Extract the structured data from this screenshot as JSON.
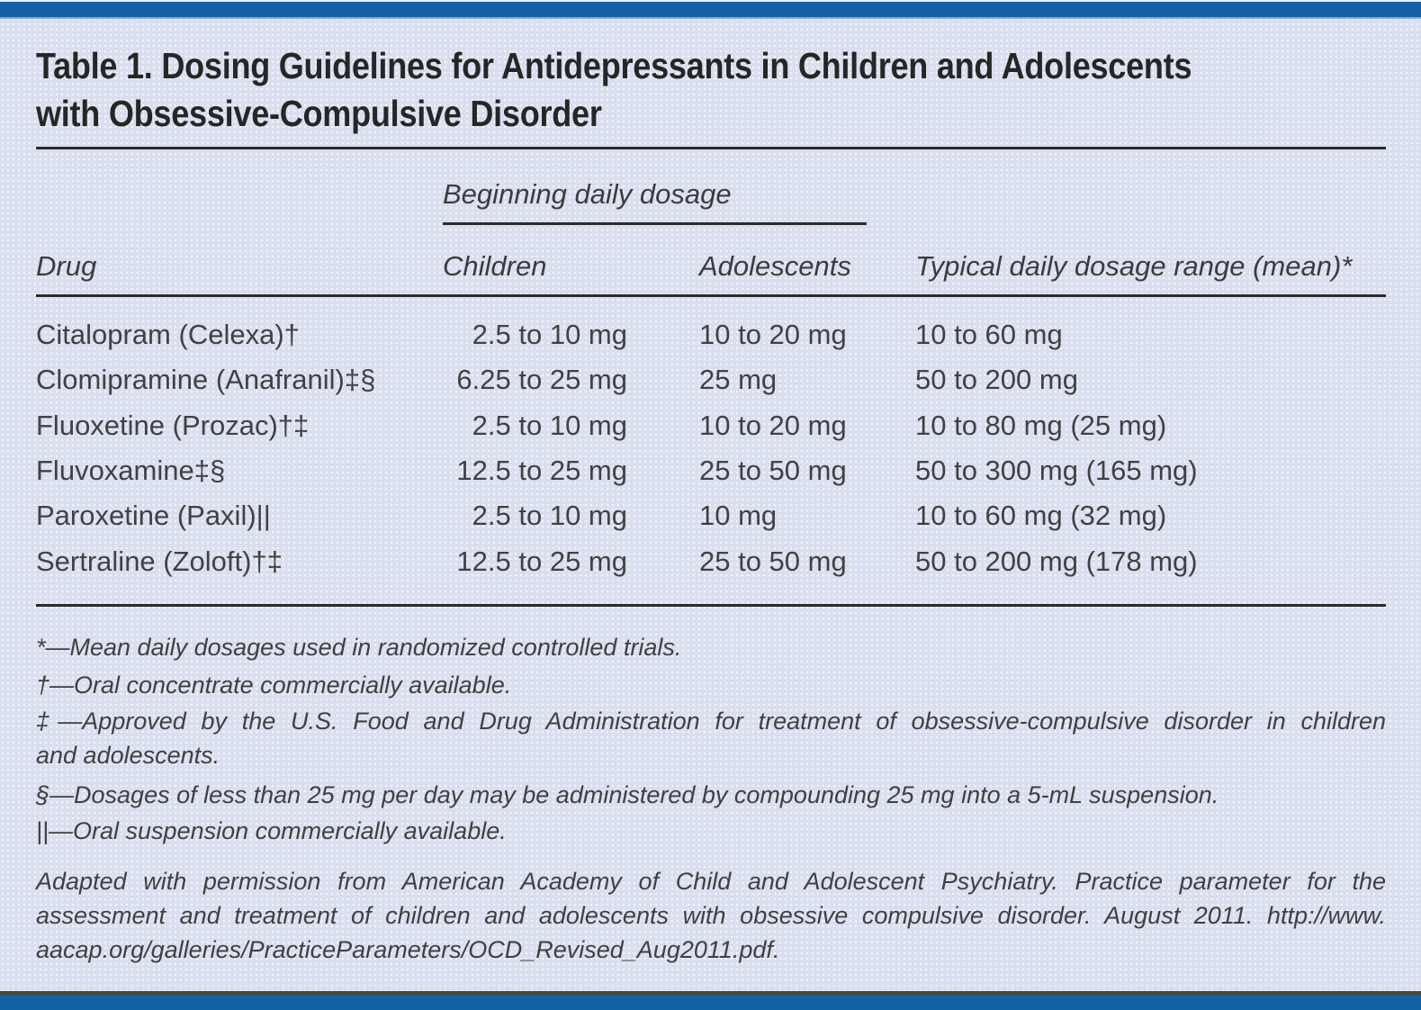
{
  "title_lines": [
    "Table 1. Dosing Guidelines for Antidepressants in Children and Adolescents",
    "with Obsessive-Compulsive Disorder"
  ],
  "table": {
    "group_header": "Beginning daily dosage",
    "columns": {
      "drug": "Drug",
      "children": "Children",
      "adolescents": "Adolescents",
      "typical": "Typical daily dosage range (mean)*"
    },
    "rows": [
      {
        "drug": "Citalopram (Celexa)†",
        "children": "2.5 to 10 mg",
        "adolescents": "10 to 20 mg",
        "typical": "10 to 60 mg"
      },
      {
        "drug": "Clomipramine (Anafranil)‡§",
        "children": "6.25 to 25 mg",
        "adolescents": "25 mg",
        "typical": "50 to 200 mg"
      },
      {
        "drug": "Fluoxetine (Prozac)†‡",
        "children": "2.5 to 10 mg",
        "adolescents": "10 to 20 mg",
        "typical": "10 to 80 mg (25 mg)"
      },
      {
        "drug": "Fluvoxamine‡§",
        "children": "12.5 to 25 mg",
        "adolescents": "25 to 50 mg",
        "typical": "50 to 300 mg (165 mg)"
      },
      {
        "drug": "Paroxetine (Paxil)||",
        "children": "2.5 to 10 mg",
        "adolescents": "10 mg",
        "typical": "10 to 60 mg (32 mg)"
      },
      {
        "drug": "Sertraline (Zoloft)†‡",
        "children": "12.5 to 25 mg",
        "adolescents": "25 to 50 mg",
        "typical": "50 to 200 mg (178 mg)"
      }
    ]
  },
  "footnotes": [
    {
      "lines": [
        "*—Mean daily dosages used in randomized controlled trials."
      ]
    },
    {
      "lines": [
        "†—Oral concentrate commercially available."
      ]
    },
    {
      "lines": [
        "‡—Approved by the U.S. Food and Drug Administration for treatment of obsessive-compulsive disorder in children",
        "and adolescents."
      ]
    },
    {
      "lines": [
        "§—Dosages of less than 25 mg per day may be administered by compounding 25 mg into a 5-mL suspension."
      ]
    },
    {
      "lines": [
        "||—Oral suspension commercially available."
      ]
    }
  ],
  "attribution_lines": [
    "Adapted with permission from American Academy of Child and Adolescent Psychiatry. Practice parameter for the",
    "assessment and treatment of children and adolescents with obsessive compulsive disorder. August 2011. http://www.",
    "aacap.org/galleries/PracticeParameters/OCD_Revised_Aug2011.pdf."
  ],
  "colors": {
    "bar_blue": "#1561a8",
    "background": "#d9dfee",
    "bottom_dark_line": "#48473c",
    "rule": "#2c2c2c",
    "title_text": "#262626",
    "body_text": "#414144"
  }
}
